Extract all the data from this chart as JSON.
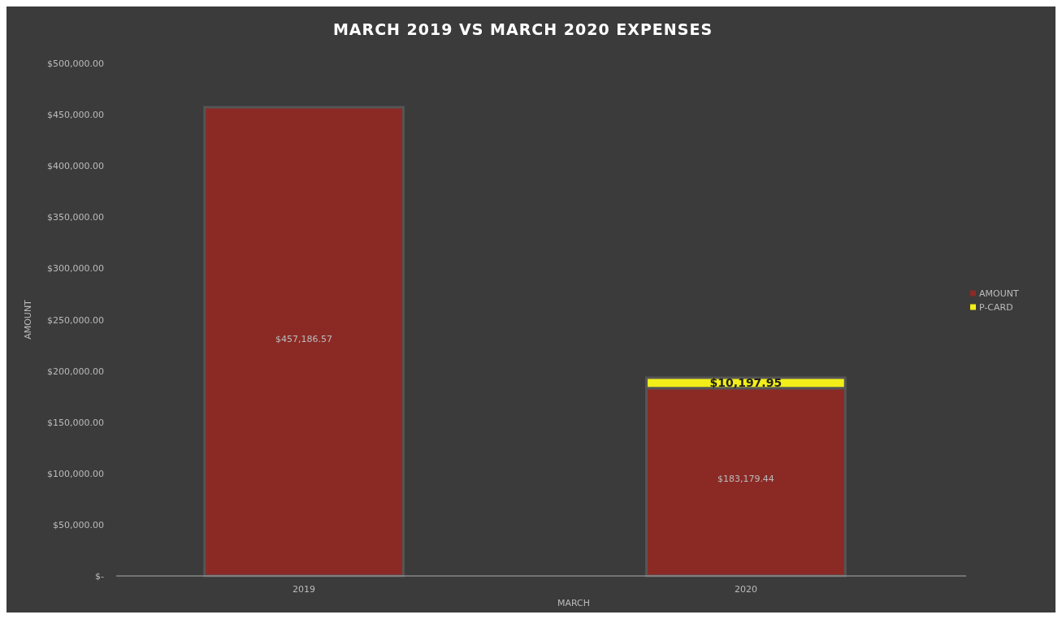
{
  "chart_data": {
    "type": "bar",
    "title": "MARCH 2019 VS MARCH 2020 EXPENSES",
    "xlabel": "MARCH",
    "ylabel": "AMOUNT",
    "categories": [
      "2019",
      "2020"
    ],
    "stacked": true,
    "legend": "right",
    "grid": false,
    "series": [
      {
        "name": "AMOUNT",
        "color": "#8b2a25",
        "values": [
          457186.57,
          183179.44
        ],
        "value_labels": [
          "$457,186.57",
          "$183,179.44"
        ]
      },
      {
        "name": "P-CARD",
        "color": "#f2ee1a",
        "values": [
          null,
          10197.95
        ],
        "value_labels": [
          null,
          "$10,197.95"
        ]
      }
    ],
    "ylim": [
      0,
      500000
    ],
    "yticks": [
      {
        "value": 0,
        "label": "$-"
      },
      {
        "value": 50000,
        "label": "$50,000.00"
      },
      {
        "value": 100000,
        "label": "$100,000.00"
      },
      {
        "value": 150000,
        "label": "$150,000.00"
      },
      {
        "value": 200000,
        "label": "$200,000.00"
      },
      {
        "value": 250000,
        "label": "$250,000.00"
      },
      {
        "value": 300000,
        "label": "$300,000.00"
      },
      {
        "value": 350000,
        "label": "$350,000.00"
      },
      {
        "value": 400000,
        "label": "$400,000.00"
      },
      {
        "value": 450000,
        "label": "$450,000.00"
      },
      {
        "value": 500000,
        "label": "$500,000.00"
      }
    ]
  }
}
